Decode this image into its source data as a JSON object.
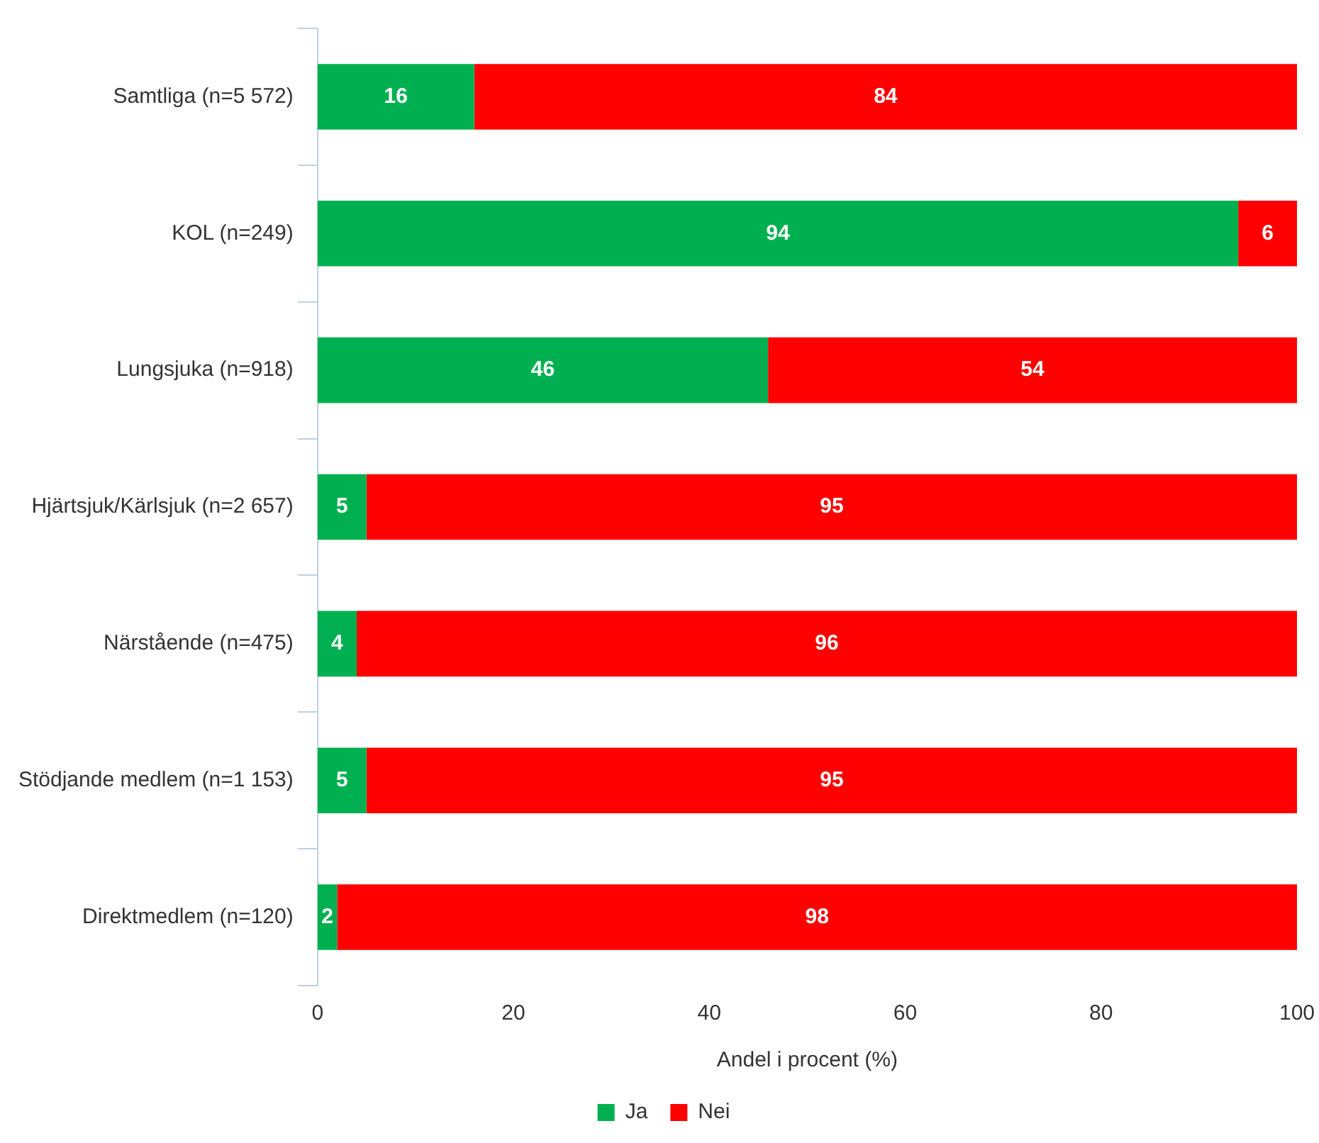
{
  "chart_data": {
    "type": "bar",
    "orientation": "horizontal",
    "stacked": true,
    "categories": [
      "Samtliga (n=5 572)",
      "KOL (n=249)",
      "Lungsjuka (n=918)",
      "Hjärtsjuk/Kärlsjuk (n=2 657)",
      "Närstående (n=475)",
      "Stödjande medlem (n=1 153)",
      "Direktmedlem (n=120)"
    ],
    "series": [
      {
        "name": "Ja",
        "color": "#00b050",
        "values": [
          16,
          94,
          46,
          5,
          4,
          5,
          2
        ]
      },
      {
        "name": "Nei",
        "color": "#ff0000",
        "values": [
          84,
          6,
          54,
          95,
          96,
          95,
          98
        ]
      }
    ],
    "xlabel": "Andel i procent (%)",
    "xlim": [
      0,
      100
    ],
    "xticks": [
      0,
      20,
      40,
      60,
      80,
      100
    ],
    "data_labels": true,
    "grid": false,
    "legend": "bottom"
  }
}
